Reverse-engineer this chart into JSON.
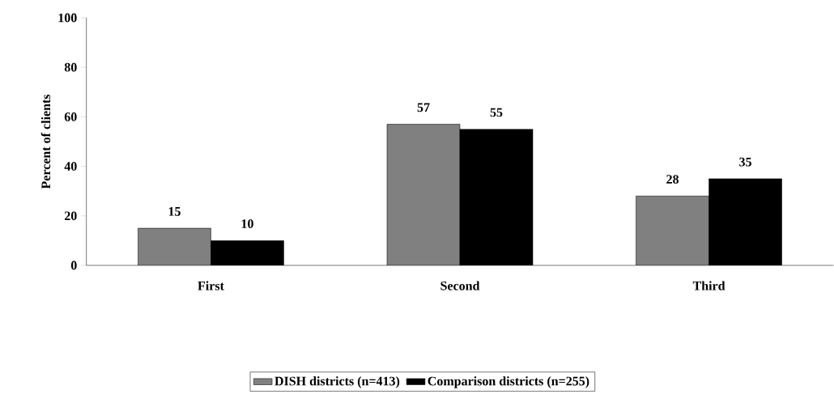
{
  "chart_data": {
    "type": "bar",
    "ylabel": "Percent of clients",
    "categories": [
      "First",
      "Second",
      "Third"
    ],
    "series": [
      {
        "name": "DISH districts (n=413)",
        "color": "#808080",
        "values": [
          15,
          57,
          28
        ]
      },
      {
        "name": "Comparison districts (n=255)",
        "color": "#000000",
        "values": [
          10,
          55,
          35
        ]
      }
    ],
    "ylim": [
      0,
      100
    ],
    "yticks": [
      0,
      20,
      40,
      60,
      80,
      100
    ],
    "data_labels": true,
    "legend": "bottom",
    "grid": false
  }
}
